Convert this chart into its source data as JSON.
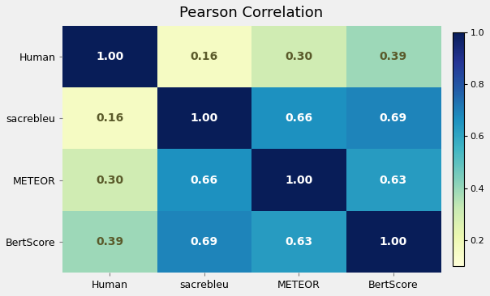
{
  "title": "Pearson Correlation",
  "labels": [
    "Human",
    "sacrebleu",
    "METEOR",
    "BertScore"
  ],
  "matrix": [
    [
      1.0,
      0.16,
      0.3,
      0.39
    ],
    [
      0.16,
      1.0,
      0.66,
      0.69
    ],
    [
      0.3,
      0.66,
      1.0,
      0.63
    ],
    [
      0.39,
      0.69,
      0.63,
      1.0
    ]
  ],
  "vmin": 0.1,
  "vmax": 1.0,
  "cmap": "YlGnBu",
  "title_fontsize": 13,
  "label_fontsize": 9,
  "annot_fontsize": 10,
  "colorbar_ticks": [
    0.2,
    0.4,
    0.6,
    0.8,
    1.0
  ],
  "figsize": [
    6.04,
    3.66
  ],
  "dpi": 100,
  "text_color_threshold": 0.55,
  "text_color_dark": "#5a5a2a",
  "text_color_light": "white",
  "bg_color": "#f0f0f0"
}
